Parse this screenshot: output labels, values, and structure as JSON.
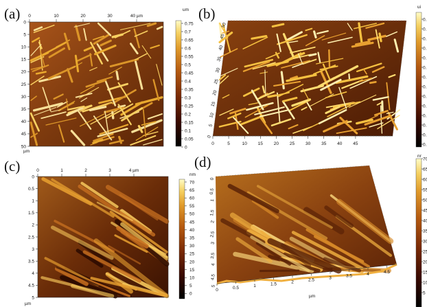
{
  "panels": [
    {
      "id": "a",
      "label": "(a)",
      "x_ticks": [
        "0",
        "10",
        "20",
        "30",
        "40 µm"
      ],
      "y_ticks": [
        "0",
        "5",
        "10",
        "15",
        "20",
        "25",
        "30",
        "35",
        "40",
        "45",
        "50"
      ],
      "y_unit": "µm",
      "colorbar_unit": "um",
      "colorbar_ticks": [
        "0.75",
        "0.7",
        "0.65",
        "0.6",
        "0.55",
        "0.5",
        "0.45",
        "0.4",
        "0.35",
        "0.3",
        "0.25",
        "0.2",
        "0.15",
        "0.1",
        "0.05",
        "0"
      ]
    },
    {
      "id": "b",
      "label": "(b)",
      "x_ticks": [
        "0",
        "5",
        "10",
        "15",
        "20",
        "25",
        "30",
        "35",
        "40",
        "45"
      ],
      "y_ticks": [
        "0",
        "5",
        "10",
        "15",
        "20",
        "25",
        "30",
        "35",
        "40",
        "45",
        "50"
      ],
      "colorbar_unit": "ui",
      "colorbar_ticks": [
        "0.",
        "0.",
        "0.",
        "0.",
        "0.",
        "0.",
        "0.",
        "0.",
        "0.",
        "0.",
        "0.",
        "0.",
        "0.",
        "0."
      ]
    },
    {
      "id": "c",
      "label": "(c)",
      "x_ticks": [
        "0",
        "1",
        "2",
        "3",
        "4 µm"
      ],
      "y_ticks": [
        "0",
        "0.5",
        "1",
        "1.5",
        "2",
        "2.5",
        "3",
        "3.5",
        "4",
        "4.5",
        "5"
      ],
      "y_unit": "µm",
      "colorbar_unit": "nm",
      "colorbar_ticks": [
        "70",
        "65",
        "60",
        "55",
        "50",
        "45",
        "40",
        "35",
        "30",
        "25",
        "20",
        "15",
        "10",
        "5",
        "0"
      ]
    },
    {
      "id": "d",
      "label": "(d)",
      "x_ticks": [
        "0",
        "0.5",
        "1",
        "1.5",
        "2",
        "2.5",
        "3",
        "3.5",
        "4",
        "4.5"
      ],
      "y_ticks": [
        "0",
        "0.5",
        "1",
        "1.5",
        "2",
        "2.5",
        "3",
        "3.5",
        "4",
        "4.5",
        "5"
      ],
      "x_unit": "µm",
      "colorbar_unit": "nr",
      "colorbar_ticks": [
        "70",
        "65",
        "60",
        "55",
        "50",
        "45",
        "40",
        "35",
        "30",
        "25",
        "20",
        "15",
        "10",
        "5"
      ]
    }
  ],
  "colormap": [
    "#000000",
    "#3a0a00",
    "#7a2a05",
    "#b55a10",
    "#e09a2a",
    "#f5d060",
    "#fffcc8"
  ]
}
